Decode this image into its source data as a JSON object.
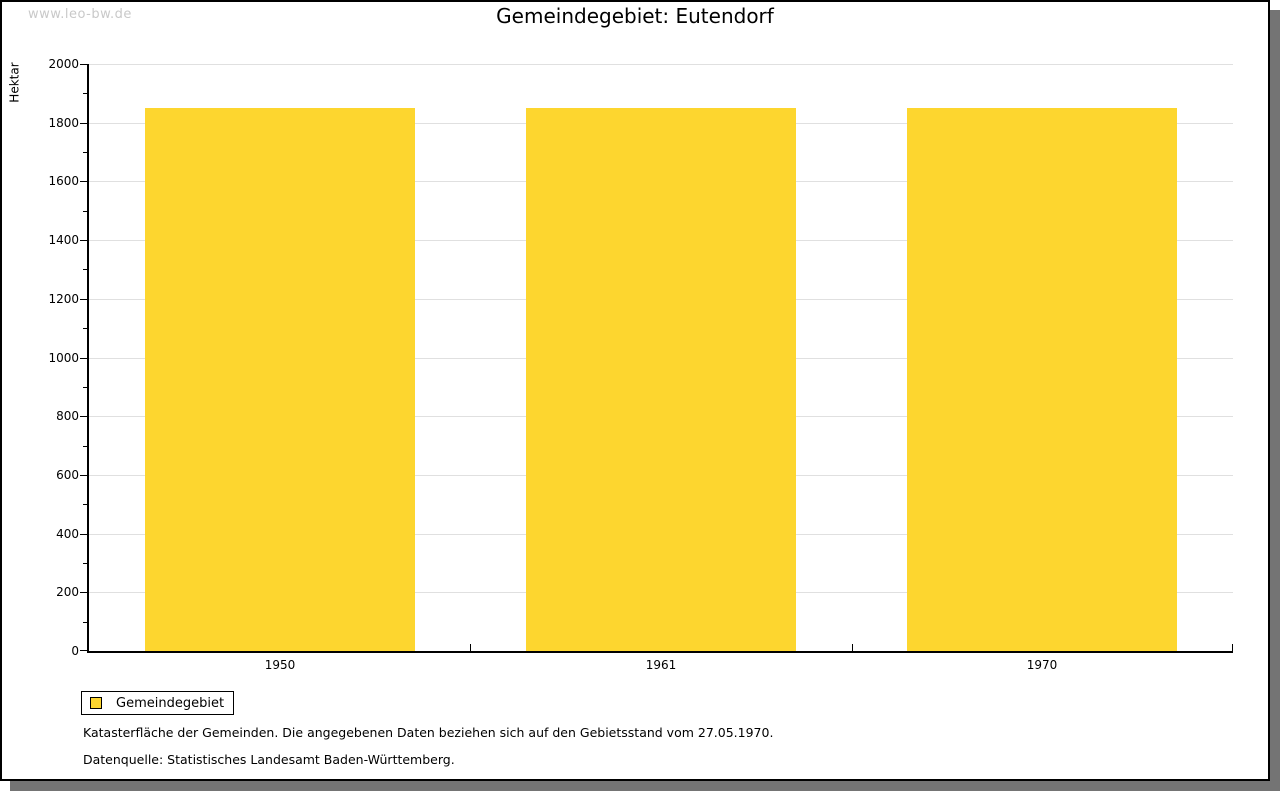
{
  "watermark": "www.leo-bw.de",
  "title": "Gemeindegebiet: Eutendorf",
  "legend": {
    "label": "Gemeindegebiet"
  },
  "notes": {
    "line1": "Katasterfläche der Gemeinden. Die angegebenen Daten beziehen sich auf den Gebietsstand vom 27.05.1970.",
    "line2": "Datenquelle: Statistisches Landesamt Baden-Württemberg."
  },
  "colors": {
    "bar": "#FDD62F",
    "grid": "#E0E0E0",
    "axis": "#000000",
    "watermark": "#C9C9C9",
    "shadow": "#747474"
  },
  "chart_data": {
    "type": "bar",
    "title": "Gemeindegebiet: Eutendorf",
    "categories": [
      "1950",
      "1961",
      "1970"
    ],
    "series": [
      {
        "name": "Gemeindegebiet",
        "values": [
          1850,
          1850,
          1850
        ]
      }
    ],
    "xlabel": "",
    "ylabel": "Hektar",
    "ylim": [
      0,
      2000
    ],
    "ytick_interval": 200,
    "minor_tick_interval": 100,
    "grid": true,
    "legend_position": "bottom-left",
    "bar_color": "#FDD62F"
  }
}
